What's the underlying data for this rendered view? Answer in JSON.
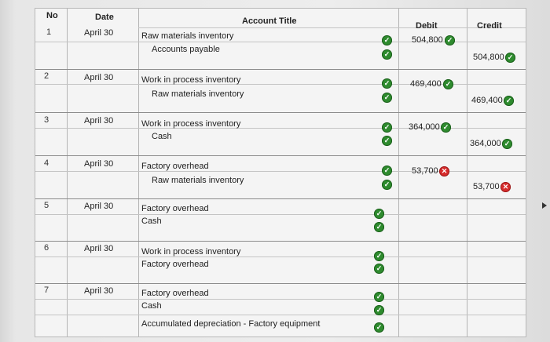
{
  "headers": {
    "no": "No",
    "date": "Date",
    "account_title": "Account Title",
    "debit": "Debit",
    "credit": "Credit"
  },
  "entries": [
    {
      "no": "1",
      "date": "April 30",
      "lines": [
        "Raw materials inventory",
        "Accounts payable"
      ],
      "debit": "504,800",
      "debit_status": "correct",
      "credit": "504,800",
      "credit_status": "correct"
    },
    {
      "no": "2",
      "date": "April 30",
      "lines": [
        "Work in process inventory",
        "Raw materials inventory"
      ],
      "debit": "469,400",
      "debit_status": "correct",
      "credit": "469,400",
      "credit_status": "correct"
    },
    {
      "no": "3",
      "date": "April 30",
      "lines": [
        "Work in process inventory",
        "Cash"
      ],
      "debit": "364,000",
      "debit_status": "correct",
      "credit": "364,000",
      "credit_status": "correct"
    },
    {
      "no": "4",
      "date": "April 30",
      "lines": [
        "Factory overhead",
        "Raw materials inventory"
      ],
      "debit": "53,700",
      "debit_status": "incorrect",
      "credit": "53,700",
      "credit_status": "incorrect"
    },
    {
      "no": "5",
      "date": "April 30",
      "lines": [
        "Factory overhead",
        "Cash"
      ],
      "debit": "",
      "credit": ""
    },
    {
      "no": "6",
      "date": "April 30",
      "lines": [
        "Work in process inventory",
        "Factory overhead"
      ],
      "debit": "",
      "credit": ""
    },
    {
      "no": "7",
      "date": "April 30",
      "lines": [
        "Factory overhead",
        "Cash",
        "Accumulated depreciation - Factory equipment"
      ],
      "debit": "",
      "credit": ""
    }
  ],
  "icons": {
    "correct": "check-circle-icon",
    "incorrect": "x-circle-icon"
  },
  "colors": {
    "correct": "#2e8b2e",
    "incorrect": "#d62b2b"
  }
}
